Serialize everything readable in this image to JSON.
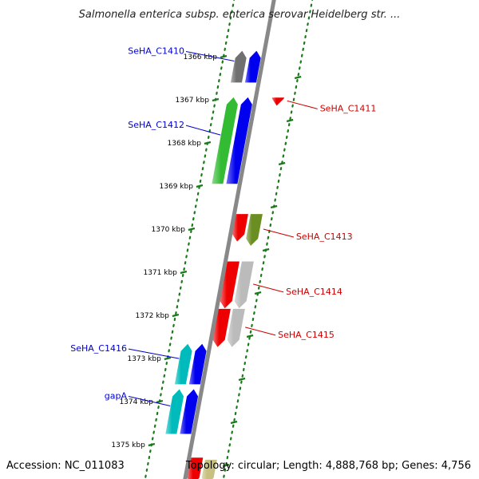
{
  "title": "Salmonella enterica subsp. enterica serovar Heidelberg str. ...",
  "accession": "Accession: NC_011083",
  "topology": "Topology: circular; Length: 4,888,768 bp; Genes: 4,756",
  "ticks": [
    {
      "kbp": 1366,
      "label": "1366 kbp"
    },
    {
      "kbp": 1367,
      "label": "1367 kbp"
    },
    {
      "kbp": 1368,
      "label": "1368 kbp"
    },
    {
      "kbp": 1369,
      "label": "1369 kbp"
    },
    {
      "kbp": 1370,
      "label": "1370 kbp"
    },
    {
      "kbp": 1371,
      "label": "1371 kbp"
    },
    {
      "kbp": 1372,
      "label": "1372 kbp"
    },
    {
      "kbp": 1373,
      "label": "1373 kbp"
    },
    {
      "kbp": 1374,
      "label": "1374 kbp"
    },
    {
      "kbp": 1375,
      "label": "1375 kbp"
    }
  ],
  "colors": {
    "forward_label": "#0000cc",
    "reverse_label": "#cc0000",
    "backbone": "#888888",
    "tick": "#1a7a1a",
    "gray": "#707070",
    "blue": "#0000ee",
    "green": "#33bb33",
    "red": "#ee0000",
    "olive": "#6b8e23",
    "light_gray": "#bbbbbb",
    "cyan": "#00bbbb",
    "tan": "#c8c080"
  },
  "genes": [
    {
      "name": "SeHA_C1410",
      "side": "left",
      "color": "gray",
      "start": 1365.9,
      "end": 1366.6
    },
    {
      "name": "",
      "side": "left2",
      "color": "blue",
      "start": 1365.9,
      "end": 1366.6
    },
    {
      "name": "SeHA_C1411",
      "side": "right",
      "color": "red",
      "start": 1366.95,
      "end": 1367.1
    },
    {
      "name": "SeHA_C1412",
      "side": "left",
      "color": "green",
      "start": 1366.98,
      "end": 1368.95
    },
    {
      "name": "",
      "side": "left2",
      "color": "blue",
      "start": 1366.98,
      "end": 1368.95
    },
    {
      "name": "",
      "side": "inner_r",
      "color": "red",
      "start": 1369.65,
      "end": 1370.25
    },
    {
      "name": "SeHA_C1413",
      "side": "right",
      "color": "olive",
      "start": 1369.65,
      "end": 1370.35
    },
    {
      "name": "",
      "side": "inner_r",
      "color": "red",
      "start": 1370.75,
      "end": 1371.8
    },
    {
      "name": "SeHA_C1414",
      "side": "right",
      "color": "light_gray",
      "start": 1370.75,
      "end": 1371.8
    },
    {
      "name": "",
      "side": "inner_r",
      "color": "red",
      "start": 1371.85,
      "end": 1372.7
    },
    {
      "name": "SeHA_C1415",
      "side": "right",
      "color": "light_gray",
      "start": 1371.85,
      "end": 1372.7
    },
    {
      "name": "SeHA_C1416",
      "side": "left",
      "color": "cyan",
      "start": 1372.7,
      "end": 1373.6
    },
    {
      "name": "",
      "side": "left2",
      "color": "blue",
      "start": 1372.7,
      "end": 1373.6
    },
    {
      "name": "gapA",
      "side": "left",
      "color": "cyan",
      "start": 1373.75,
      "end": 1374.75
    },
    {
      "name": "",
      "side": "left2",
      "color": "blue",
      "start": 1373.75,
      "end": 1374.75
    },
    {
      "name": "",
      "side": "inner_r",
      "color": "red",
      "start": 1375.3,
      "end": 1375.9
    },
    {
      "name": "",
      "side": "right",
      "color": "tan",
      "start": 1375.35,
      "end": 1375.9
    }
  ]
}
